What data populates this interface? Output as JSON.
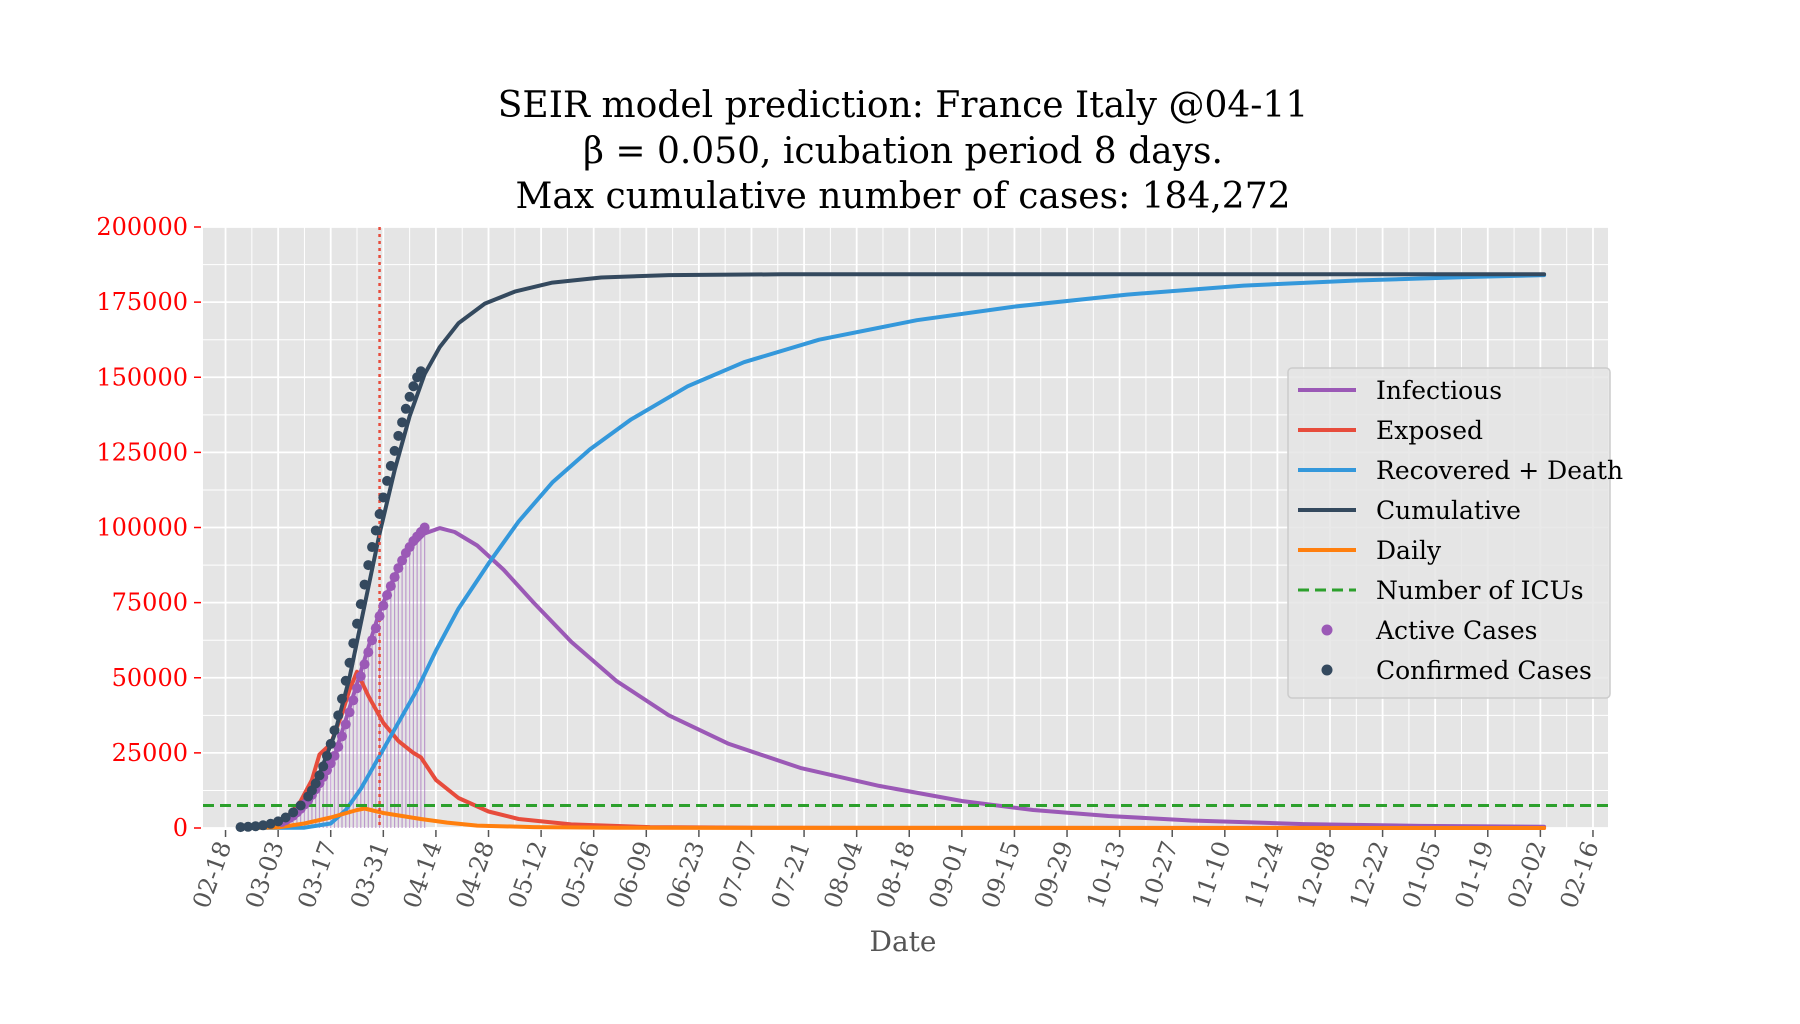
{
  "chart_data": {
    "type": "line",
    "title_lines": [
      "SEIR model prediction: France Italy @04-11",
      "β = 0.050, icubation period 8 days.",
      "Max cumulative number of cases: 184,272"
    ],
    "xlabel": "Date",
    "ylabel": "",
    "x_axis": {
      "type": "date",
      "range": [
        "2020-02-12",
        "2021-02-20"
      ],
      "tick_dates": [
        "2020-02-18",
        "2020-03-03",
        "2020-03-17",
        "2020-03-31",
        "2020-04-14",
        "2020-04-28",
        "2020-05-12",
        "2020-05-26",
        "2020-06-09",
        "2020-06-23",
        "2020-07-07",
        "2020-07-21",
        "2020-08-04",
        "2020-08-18",
        "2020-09-01",
        "2020-09-15",
        "2020-09-29",
        "2020-10-13",
        "2020-10-27",
        "2020-11-10",
        "2020-11-24",
        "2020-12-08",
        "2020-12-22",
        "2021-01-05",
        "2021-01-19",
        "2021-02-02",
        "2021-02-16"
      ],
      "tick_labels": [
        "02-18",
        "03-03",
        "03-17",
        "03-31",
        "04-14",
        "04-28",
        "05-12",
        "05-26",
        "06-09",
        "06-23",
        "07-07",
        "07-21",
        "08-04",
        "08-18",
        "09-01",
        "09-15",
        "09-29",
        "10-13",
        "10-27",
        "11-10",
        "11-24",
        "12-08",
        "12-22",
        "01-05",
        "01-19",
        "02-02",
        "02-16"
      ]
    },
    "y_axis": {
      "range": [
        0,
        200000
      ],
      "ticks": [
        0,
        25000,
        50000,
        75000,
        100000,
        125000,
        150000,
        175000,
        200000
      ],
      "tick_labels": [
        "0",
        "25000",
        "50000",
        "75000",
        "100000",
        "125000",
        "150000",
        "175000",
        "200000"
      ]
    },
    "grid": true,
    "legend_position": "center-right",
    "prediction_date": "2020-03-30",
    "series": [
      {
        "name": "Infectious",
        "kind": "line",
        "color": "#9b59b6",
        "points": [
          [
            "2020-02-22",
            0
          ],
          [
            "2020-03-01",
            800
          ],
          [
            "2020-03-06",
            3000
          ],
          [
            "2020-03-10",
            7000
          ],
          [
            "2020-03-14",
            14000
          ],
          [
            "2020-03-18",
            24000
          ],
          [
            "2020-03-22",
            40000
          ],
          [
            "2020-03-26",
            56000
          ],
          [
            "2020-03-30",
            72000
          ],
          [
            "2020-04-03",
            84000
          ],
          [
            "2020-04-07",
            93000
          ],
          [
            "2020-04-11",
            98000
          ],
          [
            "2020-04-15",
            99800
          ],
          [
            "2020-04-19",
            98500
          ],
          [
            "2020-04-25",
            94000
          ],
          [
            "2020-05-02",
            86000
          ],
          [
            "2020-05-10",
            75000
          ],
          [
            "2020-05-20",
            62000
          ],
          [
            "2020-06-01",
            49000
          ],
          [
            "2020-06-15",
            37500
          ],
          [
            "2020-07-01",
            28000
          ],
          [
            "2020-07-20",
            20000
          ],
          [
            "2020-08-10",
            14000
          ],
          [
            "2020-09-01",
            9000
          ],
          [
            "2020-09-20",
            6000
          ],
          [
            "2020-10-10",
            4000
          ],
          [
            "2020-11-01",
            2500
          ],
          [
            "2020-12-01",
            1300
          ],
          [
            "2021-01-01",
            700
          ],
          [
            "2021-02-03",
            400
          ]
        ]
      },
      {
        "name": "Exposed",
        "kind": "line",
        "color": "#e74c3c",
        "points": [
          [
            "2020-02-22",
            0
          ],
          [
            "2020-03-01",
            500
          ],
          [
            "2020-03-05",
            3000
          ],
          [
            "2020-03-09",
            9000
          ],
          [
            "2020-03-12",
            16000
          ],
          [
            "2020-03-14",
            24500
          ],
          [
            "2020-03-17",
            28000
          ],
          [
            "2020-03-20",
            38000
          ],
          [
            "2020-03-22",
            46000
          ],
          [
            "2020-03-24",
            52000
          ],
          [
            "2020-03-27",
            44000
          ],
          [
            "2020-03-31",
            35000
          ],
          [
            "2020-04-04",
            29000
          ],
          [
            "2020-04-08",
            25000
          ],
          [
            "2020-04-10",
            23500
          ],
          [
            "2020-04-14",
            16000
          ],
          [
            "2020-04-20",
            10000
          ],
          [
            "2020-04-28",
            5500
          ],
          [
            "2020-05-06",
            3000
          ],
          [
            "2020-05-20",
            1200
          ],
          [
            "2020-06-10",
            300
          ],
          [
            "2020-07-10",
            50
          ],
          [
            "2021-02-03",
            0
          ]
        ]
      },
      {
        "name": "Recovered + Death",
        "kind": "line",
        "color": "#3498db",
        "points": [
          [
            "2020-02-22",
            0
          ],
          [
            "2020-03-10",
            100
          ],
          [
            "2020-03-17",
            1500
          ],
          [
            "2020-03-21",
            6000
          ],
          [
            "2020-03-25",
            13000
          ],
          [
            "2020-03-30",
            24000
          ],
          [
            "2020-04-04",
            35000
          ],
          [
            "2020-04-09",
            46000
          ],
          [
            "2020-04-14",
            59000
          ],
          [
            "2020-04-20",
            73000
          ],
          [
            "2020-04-28",
            88000
          ],
          [
            "2020-05-06",
            102000
          ],
          [
            "2020-05-15",
            115000
          ],
          [
            "2020-05-25",
            126000
          ],
          [
            "2020-06-05",
            136000
          ],
          [
            "2020-06-20",
            147000
          ],
          [
            "2020-07-05",
            155000
          ],
          [
            "2020-07-25",
            162500
          ],
          [
            "2020-08-20",
            169000
          ],
          [
            "2020-09-15",
            173500
          ],
          [
            "2020-10-15",
            177500
          ],
          [
            "2020-11-15",
            180500
          ],
          [
            "2020-12-15",
            182200
          ],
          [
            "2021-01-15",
            183400
          ],
          [
            "2021-02-03",
            184000
          ]
        ]
      },
      {
        "name": "Cumulative",
        "kind": "line",
        "color": "#34495e",
        "points": [
          [
            "2020-02-22",
            0
          ],
          [
            "2020-03-01",
            1000
          ],
          [
            "2020-03-06",
            3500
          ],
          [
            "2020-03-10",
            9000
          ],
          [
            "2020-03-14",
            18000
          ],
          [
            "2020-03-18",
            31000
          ],
          [
            "2020-03-22",
            50000
          ],
          [
            "2020-03-26",
            74000
          ],
          [
            "2020-03-30",
            98000
          ],
          [
            "2020-04-03",
            119000
          ],
          [
            "2020-04-07",
            137000
          ],
          [
            "2020-04-11",
            151000
          ],
          [
            "2020-04-15",
            160000
          ],
          [
            "2020-04-20",
            168000
          ],
          [
            "2020-04-27",
            174500
          ],
          [
            "2020-05-05",
            178500
          ],
          [
            "2020-05-15",
            181500
          ],
          [
            "2020-05-28",
            183200
          ],
          [
            "2020-06-15",
            184000
          ],
          [
            "2020-07-15",
            184272
          ],
          [
            "2021-02-03",
            184272
          ]
        ]
      },
      {
        "name": "Daily",
        "kind": "line",
        "color": "#ff7f0e",
        "points": [
          [
            "2020-02-22",
            0
          ],
          [
            "2020-03-03",
            200
          ],
          [
            "2020-03-10",
            1500
          ],
          [
            "2020-03-17",
            3500
          ],
          [
            "2020-03-24",
            6000
          ],
          [
            "2020-03-26",
            6500
          ],
          [
            "2020-03-31",
            5000
          ],
          [
            "2020-04-05",
            4000
          ],
          [
            "2020-04-10",
            3000
          ],
          [
            "2020-04-17",
            1800
          ],
          [
            "2020-04-25",
            800
          ],
          [
            "2020-05-10",
            300
          ],
          [
            "2020-06-01",
            100
          ],
          [
            "2020-07-01",
            20
          ],
          [
            "2021-02-03",
            0
          ]
        ]
      },
      {
        "name": "Number of ICUs",
        "kind": "hline",
        "color": "#2ca02c",
        "value": 7500
      },
      {
        "name": "Active Cases",
        "kind": "scatter",
        "color": "#9b59b6",
        "points": [
          [
            "2020-03-04",
            2000
          ],
          [
            "2020-03-05",
            2600
          ],
          [
            "2020-03-06",
            3300
          ],
          [
            "2020-03-07",
            4100
          ],
          [
            "2020-03-08",
            5200
          ],
          [
            "2020-03-09",
            6400
          ],
          [
            "2020-03-10",
            7800
          ],
          [
            "2020-03-11",
            9300
          ],
          [
            "2020-03-12",
            11000
          ],
          [
            "2020-03-13",
            12900
          ],
          [
            "2020-03-14",
            14900
          ],
          [
            "2020-03-15",
            17000
          ],
          [
            "2020-03-16",
            19200
          ],
          [
            "2020-03-17",
            21500
          ],
          [
            "2020-03-18",
            24000
          ],
          [
            "2020-03-19",
            27000
          ],
          [
            "2020-03-20",
            30500
          ],
          [
            "2020-03-21",
            34500
          ],
          [
            "2020-03-22",
            38500
          ],
          [
            "2020-03-23",
            42500
          ],
          [
            "2020-03-24",
            46500
          ],
          [
            "2020-03-25",
            50500
          ],
          [
            "2020-03-26",
            54500
          ],
          [
            "2020-03-27",
            58500
          ],
          [
            "2020-03-28",
            62500
          ],
          [
            "2020-03-29",
            66500
          ],
          [
            "2020-03-30",
            70500
          ],
          [
            "2020-03-31",
            74000
          ],
          [
            "2020-04-01",
            77500
          ],
          [
            "2020-04-02",
            80500
          ],
          [
            "2020-04-03",
            83500
          ],
          [
            "2020-04-04",
            86500
          ],
          [
            "2020-04-05",
            89000
          ],
          [
            "2020-04-06",
            91500
          ],
          [
            "2020-04-07",
            93500
          ],
          [
            "2020-04-08",
            95500
          ],
          [
            "2020-04-09",
            97000
          ],
          [
            "2020-04-10",
            98500
          ],
          [
            "2020-04-11",
            100000
          ]
        ]
      },
      {
        "name": "Confirmed Cases",
        "kind": "scatter",
        "color": "#34495e",
        "points": [
          [
            "2020-02-22",
            300
          ],
          [
            "2020-02-24",
            400
          ],
          [
            "2020-02-26",
            600
          ],
          [
            "2020-02-28",
            900
          ],
          [
            "2020-03-01",
            1400
          ],
          [
            "2020-03-03",
            2200
          ],
          [
            "2020-03-05",
            3500
          ],
          [
            "2020-03-07",
            5200
          ],
          [
            "2020-03-09",
            7500
          ],
          [
            "2020-03-11",
            10500
          ],
          [
            "2020-03-12",
            12500
          ],
          [
            "2020-03-13",
            14800
          ],
          [
            "2020-03-14",
            17500
          ],
          [
            "2020-03-15",
            20500
          ],
          [
            "2020-03-16",
            24000
          ],
          [
            "2020-03-17",
            28000
          ],
          [
            "2020-03-18",
            32500
          ],
          [
            "2020-03-19",
            37500
          ],
          [
            "2020-03-20",
            43000
          ],
          [
            "2020-03-21",
            49000
          ],
          [
            "2020-03-22",
            55000
          ],
          [
            "2020-03-23",
            61500
          ],
          [
            "2020-03-24",
            68000
          ],
          [
            "2020-03-25",
            74500
          ],
          [
            "2020-03-26",
            81000
          ],
          [
            "2020-03-27",
            87500
          ],
          [
            "2020-03-28",
            93500
          ],
          [
            "2020-03-29",
            99000
          ],
          [
            "2020-03-30",
            104500
          ],
          [
            "2020-03-31",
            110000
          ],
          [
            "2020-04-01",
            115500
          ],
          [
            "2020-04-02",
            120500
          ],
          [
            "2020-04-03",
            125500
          ],
          [
            "2020-04-04",
            130500
          ],
          [
            "2020-04-05",
            135000
          ],
          [
            "2020-04-06",
            139500
          ],
          [
            "2020-04-07",
            143500
          ],
          [
            "2020-04-08",
            147000
          ],
          [
            "2020-04-09",
            150000
          ],
          [
            "2020-04-10",
            152000
          ]
        ]
      }
    ]
  }
}
